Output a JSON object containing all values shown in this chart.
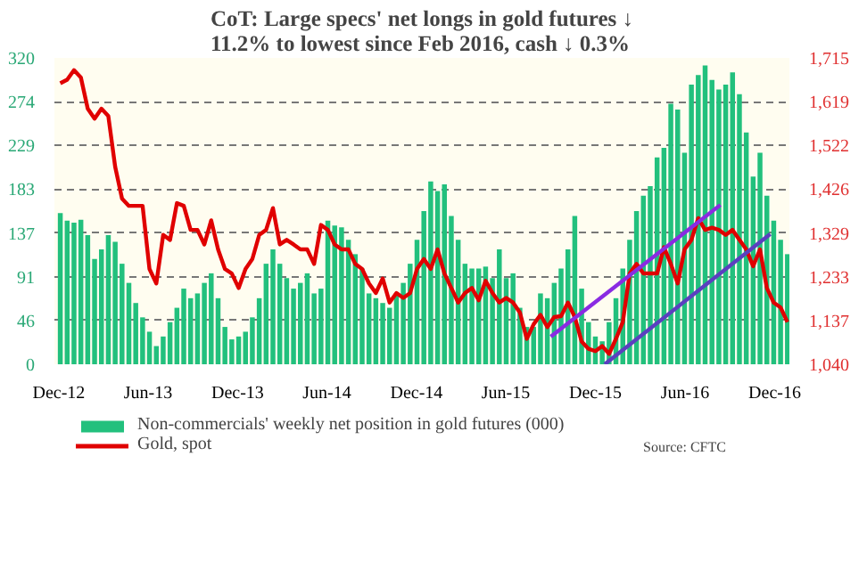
{
  "chart_data": {
    "type": "bar",
    "title": "CoT: Large specs' net longs in gold futures ↓ 11.2% to lowest since Feb 2016, cash ↓ 0.3%",
    "x": [
      "2012-12-04",
      "2012-12-18",
      "2013-01-01",
      "2013-01-15",
      "2013-01-29",
      "2013-02-12",
      "2013-02-26",
      "2013-03-12",
      "2013-03-26",
      "2013-04-09",
      "2013-04-23",
      "2013-05-07",
      "2013-05-21",
      "2013-06-04",
      "2013-06-18",
      "2013-07-02",
      "2013-07-16",
      "2013-07-30",
      "2013-08-13",
      "2013-08-27",
      "2013-09-10",
      "2013-09-24",
      "2013-10-08",
      "2013-10-22",
      "2013-11-05",
      "2013-11-19",
      "2013-12-03",
      "2013-12-17",
      "2013-12-31",
      "2014-01-14",
      "2014-01-28",
      "2014-02-11",
      "2014-02-25",
      "2014-03-11",
      "2014-03-25",
      "2014-04-08",
      "2014-04-22",
      "2014-05-06",
      "2014-05-20",
      "2014-06-03",
      "2014-06-17",
      "2014-07-01",
      "2014-07-15",
      "2014-07-29",
      "2014-08-12",
      "2014-08-26",
      "2014-09-09",
      "2014-09-23",
      "2014-10-07",
      "2014-10-21",
      "2014-11-04",
      "2014-11-18",
      "2014-12-02",
      "2014-12-16",
      "2014-12-30",
      "2015-01-13",
      "2015-01-27",
      "2015-02-10",
      "2015-02-24",
      "2015-03-10",
      "2015-03-24",
      "2015-04-07",
      "2015-04-21",
      "2015-05-05",
      "2015-05-19",
      "2015-06-02",
      "2015-06-16",
      "2015-06-30",
      "2015-07-14",
      "2015-07-28",
      "2015-08-11",
      "2015-08-25",
      "2015-09-08",
      "2015-09-22",
      "2015-10-06",
      "2015-10-20",
      "2015-11-03",
      "2015-11-17",
      "2015-12-01",
      "2015-12-15",
      "2015-12-29",
      "2016-01-12",
      "2016-01-26",
      "2016-02-09",
      "2016-02-23",
      "2016-03-08",
      "2016-03-22",
      "2016-04-05",
      "2016-04-19",
      "2016-05-03",
      "2016-05-17",
      "2016-05-31",
      "2016-06-14",
      "2016-06-28",
      "2016-07-12",
      "2016-07-26",
      "2016-08-09",
      "2016-08-23",
      "2016-09-06",
      "2016-09-20",
      "2016-10-04",
      "2016-10-18",
      "2016-11-01",
      "2016-11-15",
      "2016-11-29",
      "2016-12-13",
      "2016-12-27"
    ],
    "series": [
      {
        "name": "Non-commercials' weekly net position in gold futures (000)",
        "color": "#22c07d",
        "values": [
          158,
          150,
          148,
          151,
          135,
          110,
          120,
          135,
          128,
          105,
          85,
          64,
          49,
          34,
          19,
          29,
          44,
          59,
          79,
          69,
          74,
          85,
          95,
          69,
          39,
          26,
          29,
          34,
          49,
          69,
          105,
          120,
          105,
          90,
          79,
          85,
          95,
          74,
          79,
          150,
          145,
          143,
          130,
          115,
          100,
          74,
          69,
          64,
          59,
          74,
          85,
          105,
          130,
          160,
          191,
          181,
          188,
          155,
          130,
          105,
          100,
          100,
          102,
          90,
          120,
          90,
          95,
          59,
          39,
          39,
          74,
          69,
          85,
          100,
          120,
          155,
          79,
          44,
          29,
          24,
          44,
          69,
          100,
          130,
          160,
          176,
          186,
          216,
          226,
          272,
          266,
          221,
          292,
          302,
          312,
          297,
          287,
          292,
          305,
          282,
          242,
          196,
          221,
          176,
          150,
          130,
          115
        ]
      },
      {
        "name": "Gold, spot",
        "type": "line",
        "axis": "y2",
        "color": "#e00000",
        "values": [
          1659,
          1667,
          1688,
          1672,
          1603,
          1581,
          1603,
          1587,
          1475,
          1405,
          1389,
          1389,
          1389,
          1250,
          1218,
          1325,
          1314,
          1395,
          1389,
          1336,
          1336,
          1304,
          1357,
          1293,
          1250,
          1240,
          1208,
          1250,
          1272,
          1325,
          1336,
          1384,
          1304,
          1314,
          1304,
          1293,
          1293,
          1261,
          1347,
          1336,
          1304,
          1293,
          1293,
          1261,
          1250,
          1218,
          1197,
          1229,
          1176,
          1197,
          1186,
          1197,
          1250,
          1272,
          1250,
          1293,
          1240,
          1208,
          1176,
          1197,
          1208,
          1181,
          1224,
          1197,
          1176,
          1186,
          1176,
          1154,
          1096,
          1128,
          1149,
          1122,
          1144,
          1146,
          1176,
          1144,
          1090,
          1074,
          1069,
          1080,
          1063,
          1096,
          1133,
          1240,
          1261,
          1240,
          1240,
          1240,
          1298,
          1261,
          1218,
          1293,
          1314,
          1362,
          1336,
          1341,
          1336,
          1325,
          1336,
          1314,
          1293,
          1256,
          1293,
          1208,
          1176,
          1165,
          1133
        ]
      },
      {
        "type": "line",
        "axis": "y2",
        "color": "#8a2be2",
        "x": [
          "2015-09-01",
          "2016-08-12"
        ],
        "values": [
          1101,
          1391
        ]
      },
      {
        "type": "line",
        "axis": "y2",
        "color": "#5b3fc0",
        "x": [
          "2015-12-20",
          "2016-11-22"
        ],
        "values": [
          1040,
          1327
        ]
      }
    ],
    "xlim": [
      "2012-11-22",
      "2016-12-31"
    ],
    "xticks": [
      {
        "value": "2012-12-01",
        "label": "Dec-12"
      },
      {
        "value": "2013-06-01",
        "label": "Jun-13"
      },
      {
        "value": "2013-12-01",
        "label": "Dec-13"
      },
      {
        "value": "2014-06-01",
        "label": "Jun-14"
      },
      {
        "value": "2014-12-01",
        "label": "Dec-14"
      },
      {
        "value": "2015-06-01",
        "label": "Jun-15"
      },
      {
        "value": "2015-12-01",
        "label": "Dec-15"
      },
      {
        "value": "2016-06-01",
        "label": "Jun-16"
      },
      {
        "value": "2016-12-01",
        "label": "Dec-16"
      }
    ],
    "ylim": [
      0,
      320
    ],
    "yticks": [
      0,
      46,
      91,
      137,
      183,
      229,
      274,
      320
    ],
    "y2lim": [
      1040,
      1715
    ],
    "y2ticks": [
      {
        "value": 1040,
        "label": "1,040"
      },
      {
        "value": 1137,
        "label": "1,137"
      },
      {
        "value": 1233,
        "label": "1,233"
      },
      {
        "value": 1329,
        "label": "1,329"
      },
      {
        "value": 1426,
        "label": "1,426"
      },
      {
        "value": 1522,
        "label": "1,522"
      },
      {
        "value": 1619,
        "label": "1,619"
      },
      {
        "value": 1715,
        "label": "1,715"
      }
    ],
    "grid": "y",
    "legend": "bottom",
    "annotations": [
      "Source: CFTC"
    ]
  }
}
